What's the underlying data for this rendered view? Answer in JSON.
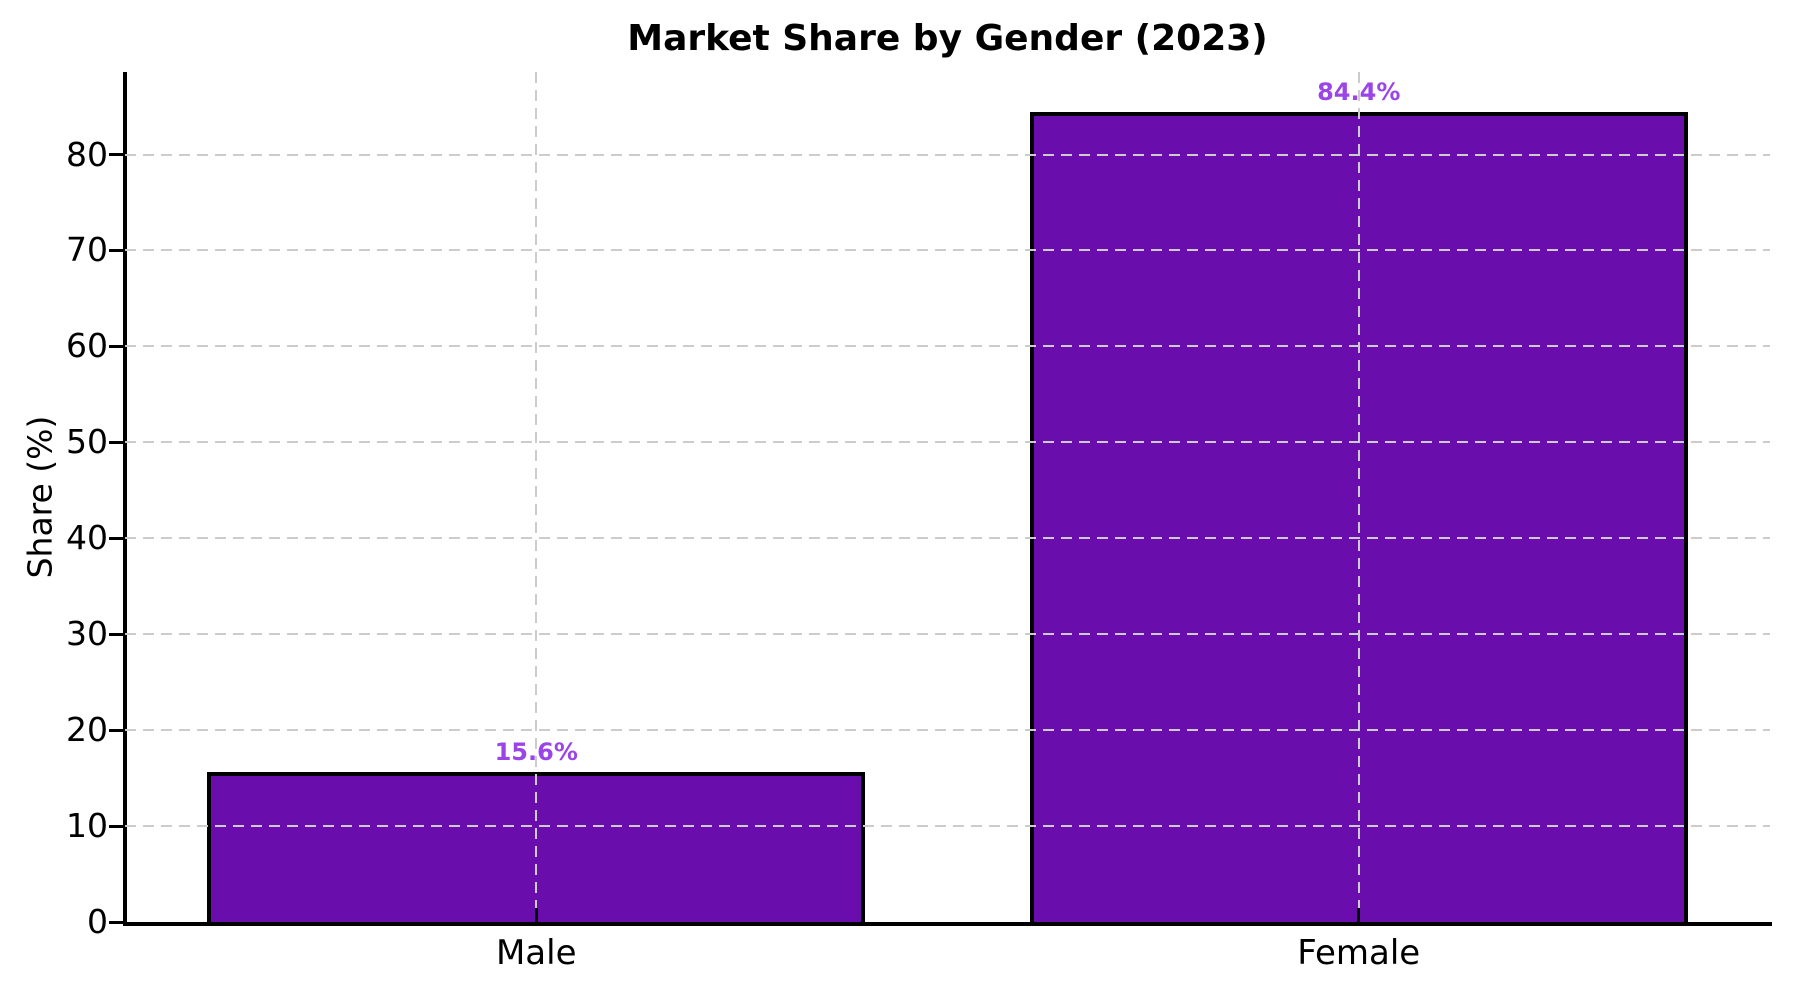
{
  "chart_data": {
    "type": "bar",
    "title": "Market Share by Gender (2023)",
    "xlabel": "",
    "ylabel": "Share (%)",
    "categories": [
      "Male",
      "Female"
    ],
    "values": [
      15.6,
      84.4
    ],
    "value_labels": [
      "15.6%",
      "84.4%"
    ],
    "yticks": [
      0,
      10,
      20,
      30,
      40,
      50,
      60,
      70,
      80
    ],
    "ylim": [
      0,
      88.6
    ],
    "grid": "dashed, horizontal at each ytick and vertical at each category center, drawn over bars",
    "legend_position": "none",
    "colors": {
      "bar_fill": "#6a0dad",
      "bar_edge": "#000000",
      "value_label": "#9b45e8",
      "grid": "#cccccc",
      "axis": "#000000",
      "text": "#000000",
      "background": "#ffffff"
    }
  }
}
